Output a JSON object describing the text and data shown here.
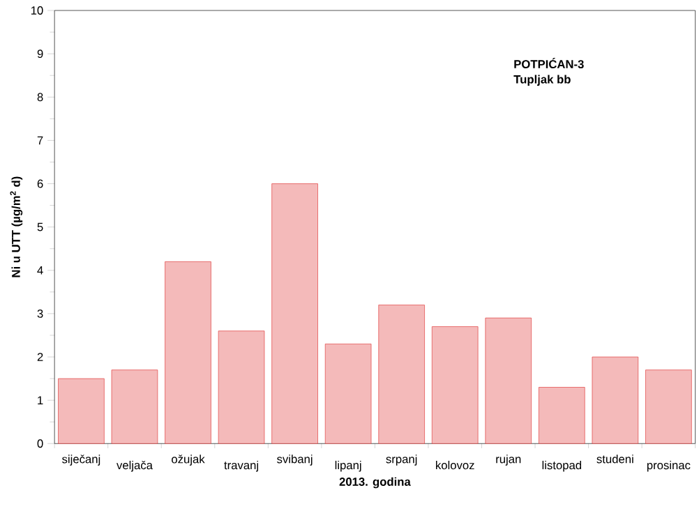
{
  "chart_data": {
    "type": "bar",
    "categories": [
      "siječanj",
      "veljača",
      "ožujak",
      "travanj",
      "svibanj",
      "lipanj",
      "srpanj",
      "kolovoz",
      "rujan",
      "listopad",
      "studeni",
      "prosinac"
    ],
    "values": [
      1.5,
      1.7,
      4.2,
      2.6,
      6.0,
      2.3,
      3.2,
      2.7,
      2.9,
      1.3,
      2.0,
      1.7
    ],
    "color": "#e03a3a",
    "ylim": [
      0,
      10
    ],
    "yticks": [
      0,
      1,
      2,
      3,
      4,
      5,
      6,
      7,
      8,
      9,
      10
    ],
    "xlabel": "2013. godina",
    "ylabel": "Ni u UTT (µg/m$^{2}$ d)",
    "annotations": [
      "POTPIĆAN-3",
      "Tupljak bb"
    ]
  }
}
